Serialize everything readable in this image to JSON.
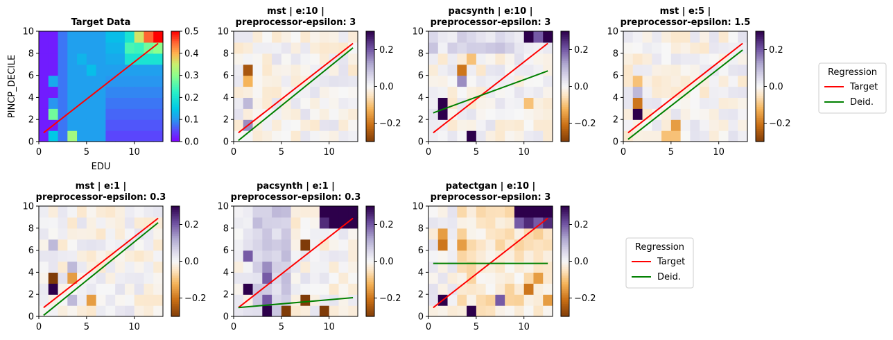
{
  "chart_data": [
    {
      "type": "heatmap",
      "title_lines": [
        "Target Data"
      ],
      "xlabel": "EDU",
      "ylabel": "PINCP_DECILE",
      "xlim": [
        0,
        13
      ],
      "ylim": [
        0,
        10
      ],
      "xticks": [
        "0",
        "5",
        "10"
      ],
      "yticks": [
        "0",
        "2",
        "4",
        "6",
        "8",
        "10"
      ],
      "colormap": "rainbow",
      "clim": [
        0.0,
        0.5
      ],
      "colorbar_ticks": [
        "0.0",
        "0.1",
        "0.2",
        "0.3",
        "0.4",
        "0.5"
      ],
      "lines": [
        {
          "name": "Target",
          "color": "#ff0000",
          "x": [
            0.5,
            12.5
          ],
          "y": [
            0.8,
            8.9
          ]
        }
      ]
    },
    {
      "type": "heatmap",
      "title_lines": [
        "mst | e:10 |",
        "preprocessor-epsilon: 3"
      ],
      "xlim": [
        0,
        13
      ],
      "ylim": [
        0,
        10
      ],
      "xticks": [
        "0",
        "5",
        "10"
      ],
      "yticks": [
        "0",
        "2",
        "4",
        "6",
        "8",
        "10"
      ],
      "colormap": "PuOr",
      "clim": [
        -0.3,
        0.3
      ],
      "colorbar_ticks": [
        "-0.2",
        "0.0",
        "0.2"
      ],
      "lines": [
        {
          "name": "Target",
          "color": "#ff0000",
          "x": [
            0.5,
            12.5
          ],
          "y": [
            0.8,
            8.9
          ]
        },
        {
          "name": "Deid.",
          "color": "#008000",
          "x": [
            0.5,
            12.5
          ],
          "y": [
            0.1,
            8.5
          ]
        }
      ]
    },
    {
      "type": "heatmap",
      "title_lines": [
        "pacsynth | e:10 |",
        "preprocessor-epsilon: 3"
      ],
      "xlim": [
        0,
        13
      ],
      "ylim": [
        0,
        10
      ],
      "xticks": [
        "0",
        "5",
        "10"
      ],
      "yticks": [
        "0",
        "2",
        "4",
        "6",
        "8",
        "10"
      ],
      "colormap": "PuOr",
      "clim": [
        -0.3,
        0.3
      ],
      "colorbar_ticks": [
        "-0.2",
        "0.0",
        "0.2"
      ],
      "lines": [
        {
          "name": "Target",
          "color": "#ff0000",
          "x": [
            0.5,
            12.5
          ],
          "y": [
            0.8,
            8.9
          ]
        },
        {
          "name": "Deid.",
          "color": "#008000",
          "x": [
            0.5,
            12.5
          ],
          "y": [
            2.6,
            6.4
          ]
        }
      ]
    },
    {
      "type": "heatmap",
      "title_lines": [
        "mst | e:5 |",
        "preprocessor-epsilon: 1.5"
      ],
      "xlim": [
        0,
        13
      ],
      "ylim": [
        0,
        10
      ],
      "xticks": [
        "0",
        "5",
        "10"
      ],
      "yticks": [
        "0",
        "2",
        "4",
        "6",
        "8",
        "10"
      ],
      "colormap": "PuOr",
      "clim": [
        -0.3,
        0.3
      ],
      "colorbar_ticks": [
        "-0.2",
        "0.0",
        "0.2"
      ],
      "lines": [
        {
          "name": "Target",
          "color": "#ff0000",
          "x": [
            0.5,
            12.5
          ],
          "y": [
            0.8,
            8.9
          ]
        },
        {
          "name": "Deid.",
          "color": "#008000",
          "x": [
            0.5,
            12.5
          ],
          "y": [
            0.2,
            8.3
          ]
        }
      ]
    },
    {
      "type": "heatmap",
      "title_lines": [
        "mst | e:1 |",
        "preprocessor-epsilon: 0.3"
      ],
      "xlim": [
        0,
        13
      ],
      "ylim": [
        0,
        10
      ],
      "xticks": [
        "0",
        "5",
        "10"
      ],
      "yticks": [
        "0",
        "2",
        "4",
        "6",
        "8",
        "10"
      ],
      "colormap": "PuOr",
      "clim": [
        -0.3,
        0.3
      ],
      "colorbar_ticks": [
        "-0.2",
        "0.0",
        "0.2"
      ],
      "lines": [
        {
          "name": "Target",
          "color": "#ff0000",
          "x": [
            0.5,
            12.5
          ],
          "y": [
            0.8,
            8.9
          ]
        },
        {
          "name": "Deid.",
          "color": "#008000",
          "x": [
            0.5,
            12.5
          ],
          "y": [
            0.1,
            8.5
          ]
        }
      ]
    },
    {
      "type": "heatmap",
      "title_lines": [
        "pacsynth | e:1 |",
        "preprocessor-epsilon: 0.3"
      ],
      "xlim": [
        0,
        13
      ],
      "ylim": [
        0,
        10
      ],
      "xticks": [
        "0",
        "5",
        "10"
      ],
      "yticks": [
        "0",
        "2",
        "4",
        "6",
        "8",
        "10"
      ],
      "colormap": "PuOr",
      "clim": [
        -0.3,
        0.3
      ],
      "colorbar_ticks": [
        "-0.2",
        "0.0",
        "0.2"
      ],
      "lines": [
        {
          "name": "Target",
          "color": "#ff0000",
          "x": [
            0.5,
            12.5
          ],
          "y": [
            0.8,
            8.9
          ]
        },
        {
          "name": "Deid.",
          "color": "#008000",
          "x": [
            0.5,
            12.5
          ],
          "y": [
            0.8,
            1.7
          ]
        }
      ]
    },
    {
      "type": "heatmap",
      "title_lines": [
        "patectgan | e:10 |",
        "preprocessor-epsilon: 3"
      ],
      "xlim": [
        0,
        13
      ],
      "ylim": [
        0,
        10
      ],
      "xticks": [
        "0",
        "5",
        "10"
      ],
      "yticks": [
        "0",
        "2",
        "4",
        "6",
        "8",
        "10"
      ],
      "colormap": "PuOr",
      "clim": [
        -0.3,
        0.3
      ],
      "colorbar_ticks": [
        "-0.2",
        "0.0",
        "0.2"
      ],
      "lines": [
        {
          "name": "Target",
          "color": "#ff0000",
          "x": [
            0.5,
            12.5
          ],
          "y": [
            0.8,
            8.9
          ]
        },
        {
          "name": "Deid.",
          "color": "#008000",
          "x": [
            0.5,
            12.5
          ],
          "y": [
            4.8,
            4.8
          ]
        }
      ]
    }
  ],
  "legends": [
    {
      "title": "Regression",
      "entries": [
        {
          "label": "Target",
          "color": "#ff0000"
        },
        {
          "label": "Deid.",
          "color": "#008000"
        }
      ]
    },
    {
      "title": "Regression",
      "entries": [
        {
          "label": "Target",
          "color": "#ff0000"
        },
        {
          "label": "Deid.",
          "color": "#008000"
        }
      ]
    }
  ]
}
